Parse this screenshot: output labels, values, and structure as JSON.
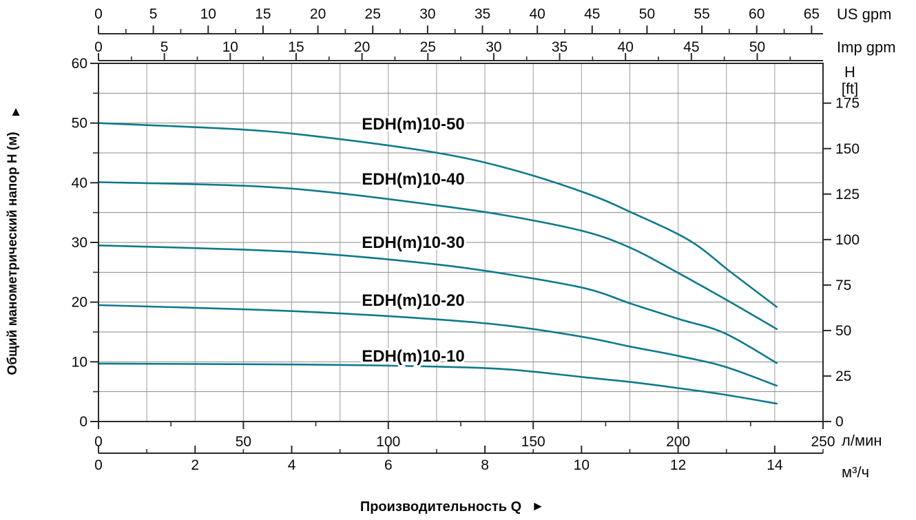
{
  "header_units": {
    "us_gpm": "US gpm",
    "imp_gpm": "Imp gpm",
    "h": "H",
    "ft": "[ft]",
    "l_min": "л/мин",
    "m3_h": "м³/ч"
  },
  "axis_titles": {
    "y_left": "Общий манометрический напор H (м)",
    "y_left_arrow": "▲",
    "x_bottom": "Производительность Q",
    "x_bottom_arrow": "►"
  },
  "chart_data": {
    "type": "line",
    "x_primary_unit": "л/мин",
    "x_range_l_min": [
      0,
      250
    ],
    "y_primary_unit": "м",
    "y_range_m": [
      0,
      60
    ],
    "grid": {
      "vertical_every_m3h": 1,
      "horizontal_every_m": 5,
      "grid_on": true
    },
    "axes": {
      "us_gpm": {
        "major_ticks": [
          0,
          5,
          10,
          15,
          20,
          25,
          30,
          35,
          40,
          45,
          50,
          55,
          60,
          65
        ],
        "minor_step": 2.5,
        "l_min_per_unit": 3.7854
      },
      "imp_gpm": {
        "major_ticks": [
          0,
          5,
          10,
          15,
          20,
          25,
          30,
          35,
          40,
          45,
          50
        ],
        "minor_step": 2.5,
        "l_min_per_unit": 4.5461
      },
      "h_m": {
        "major_ticks": [
          0,
          10,
          20,
          30,
          40,
          50,
          60
        ],
        "minor_step": 5
      },
      "h_ft": {
        "major_ticks": [
          0,
          25,
          50,
          75,
          100,
          125,
          150,
          175
        ],
        "m_per_unit": 0.3048
      },
      "l_min": {
        "major_ticks": [
          0,
          50,
          100,
          150,
          200,
          250
        ],
        "minor_step": 25
      },
      "m3_h": {
        "major_ticks": [
          0,
          2,
          4,
          6,
          8,
          10,
          12,
          14
        ],
        "minor_step": 1,
        "l_min_per_unit": 16.6667
      }
    },
    "series_color": "#0e7a8c",
    "series": [
      {
        "name": "EDH(m)10-50",
        "points_l_min_m": [
          [
            0,
            50.0
          ],
          [
            50,
            48.9
          ],
          [
            80,
            47.5
          ],
          [
            117,
            45.0
          ],
          [
            142,
            42.3
          ],
          [
            168,
            38.3
          ],
          [
            184,
            35.0
          ],
          [
            204,
            30.3
          ],
          [
            218,
            25.1
          ],
          [
            234,
            19.2
          ]
        ]
      },
      {
        "name": "EDH(m)10-40",
        "points_l_min_m": [
          [
            0,
            40.1
          ],
          [
            50,
            39.5
          ],
          [
            80,
            38.4
          ],
          [
            117,
            36.2
          ],
          [
            142,
            34.4
          ],
          [
            168,
            31.8
          ],
          [
            184,
            29.0
          ],
          [
            200,
            24.9
          ],
          [
            217,
            20.3
          ],
          [
            234,
            15.5
          ]
        ]
      },
      {
        "name": "EDH(m)10-30",
        "points_l_min_m": [
          [
            0,
            29.5
          ],
          [
            50,
            28.8
          ],
          [
            80,
            28.0
          ],
          [
            117,
            26.3
          ],
          [
            142,
            24.6
          ],
          [
            168,
            22.3
          ],
          [
            184,
            19.7
          ],
          [
            200,
            17.2
          ],
          [
            216,
            14.8
          ],
          [
            234,
            9.8
          ]
        ]
      },
      {
        "name": "EDH(m)10-20",
        "points_l_min_m": [
          [
            0,
            19.5
          ],
          [
            50,
            18.8
          ],
          [
            80,
            18.2
          ],
          [
            117,
            17.1
          ],
          [
            142,
            16.0
          ],
          [
            168,
            14.1
          ],
          [
            184,
            12.5
          ],
          [
            200,
            11.0
          ],
          [
            216,
            9.2
          ],
          [
            234,
            6.0
          ]
        ]
      },
      {
        "name": "EDH(m)10-10",
        "points_l_min_m": [
          [
            0,
            9.7
          ],
          [
            50,
            9.6
          ],
          [
            80,
            9.5
          ],
          [
            117,
            9.2
          ],
          [
            142,
            8.7
          ],
          [
            168,
            7.4
          ],
          [
            184,
            6.6
          ],
          [
            200,
            5.6
          ],
          [
            216,
            4.5
          ],
          [
            234,
            3.0
          ]
        ]
      }
    ]
  }
}
